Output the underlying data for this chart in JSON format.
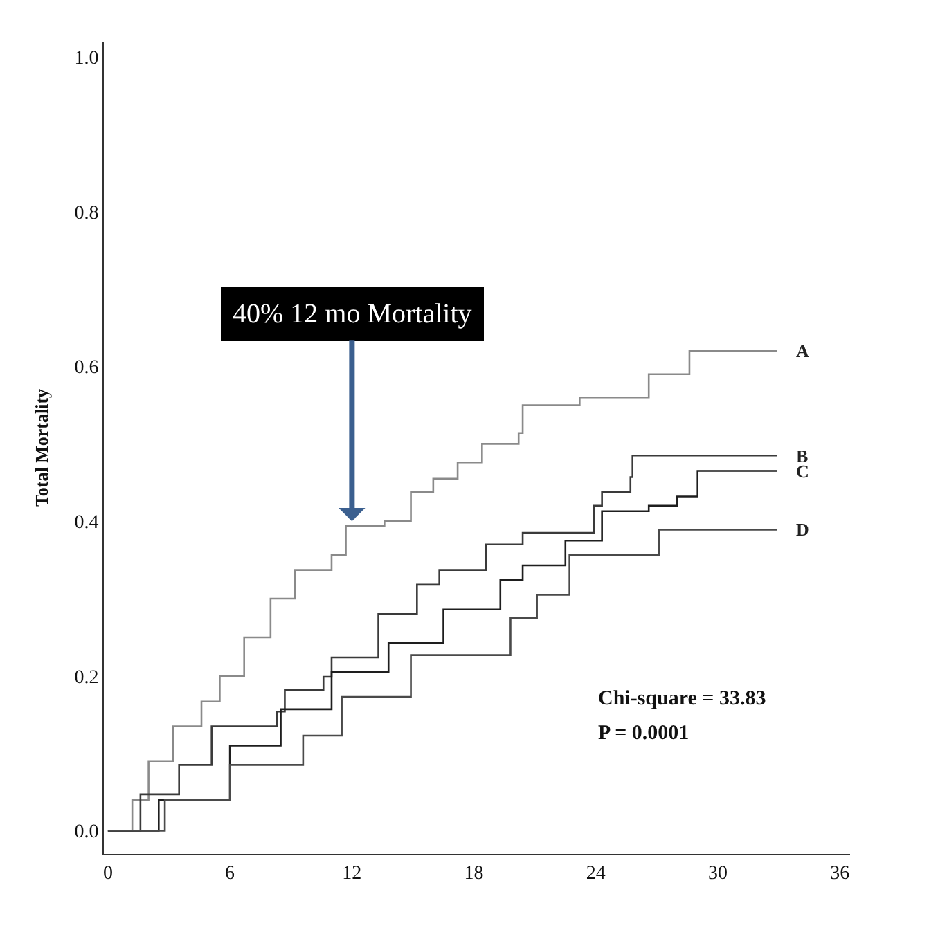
{
  "chart_data": {
    "type": "step",
    "ylabel": "Total Mortality",
    "xlim": [
      -0.2,
      36.5
    ],
    "ylim": [
      -0.03,
      1.02
    ],
    "xticks": [
      0,
      6,
      12,
      18,
      24,
      30,
      36
    ],
    "yticks": [
      {
        "value": 0,
        "label": "0.0"
      },
      {
        "value": 0.2,
        "label": "0.2"
      },
      {
        "value": 0.4,
        "label": "0.4"
      },
      {
        "value": 0.6,
        "label": "0.6"
      },
      {
        "value": 0.8,
        "label": "0.8"
      },
      {
        "value": 1,
        "label": "1.0"
      }
    ],
    "legend": false,
    "marker": "none",
    "line_style": "solid",
    "series": [
      {
        "name": "A",
        "color": "#8a8a8a",
        "x": [
          0,
          1.2,
          2,
          3.2,
          4.6,
          5.5,
          6.7,
          8,
          9.2,
          11,
          11.7,
          13.6,
          14.9,
          16,
          17.2,
          18.4,
          20.2,
          20.4,
          23.2,
          26.6,
          28.6,
          32.9
        ],
        "values": [
          0,
          0.04,
          0.09,
          0.135,
          0.167,
          0.2,
          0.25,
          0.3,
          0.337,
          0.356,
          0.394,
          0.4,
          0.438,
          0.455,
          0.476,
          0.5,
          0.514,
          0.55,
          0.56,
          0.59,
          0.62,
          0.62
        ]
      },
      {
        "name": "B",
        "color": "#3a3a3a",
        "x": [
          0,
          1.6,
          3.5,
          5.1,
          8.3,
          8.7,
          10.6,
          11,
          13.3,
          15.2,
          16.3,
          18.6,
          20.4,
          23.9,
          24.3,
          25.7,
          25.8,
          32.9
        ],
        "values": [
          0,
          0.047,
          0.085,
          0.135,
          0.154,
          0.182,
          0.199,
          0.224,
          0.28,
          0.318,
          0.337,
          0.37,
          0.385,
          0.42,
          0.438,
          0.457,
          0.485,
          0.485
        ]
      },
      {
        "name": "C",
        "color": "#1e1e1e",
        "x": [
          0,
          2.5,
          6,
          8.5,
          11,
          13.8,
          16.5,
          19.3,
          20.4,
          22.5,
          24.3,
          26.6,
          28,
          29,
          32.9
        ],
        "values": [
          0,
          0.04,
          0.11,
          0.157,
          0.205,
          0.243,
          0.286,
          0.324,
          0.343,
          0.375,
          0.413,
          0.42,
          0.432,
          0.465,
          0.465
        ]
      },
      {
        "name": "D",
        "color": "#4a4a4a",
        "x": [
          0,
          2.8,
          6,
          9.6,
          11.5,
          14.9,
          19.1,
          19.8,
          21.1,
          22.7,
          27.1,
          32.9
        ],
        "values": [
          0,
          0.04,
          0.085,
          0.123,
          0.173,
          0.227,
          0.227,
          0.275,
          0.305,
          0.356,
          0.389,
          0.389
        ]
      }
    ],
    "annotations": [
      {
        "text": "40% 12 mo Mortality",
        "x": 12,
        "y": 0.4
      },
      "Chi-square = 33.83",
      "P = 0.0001"
    ]
  }
}
